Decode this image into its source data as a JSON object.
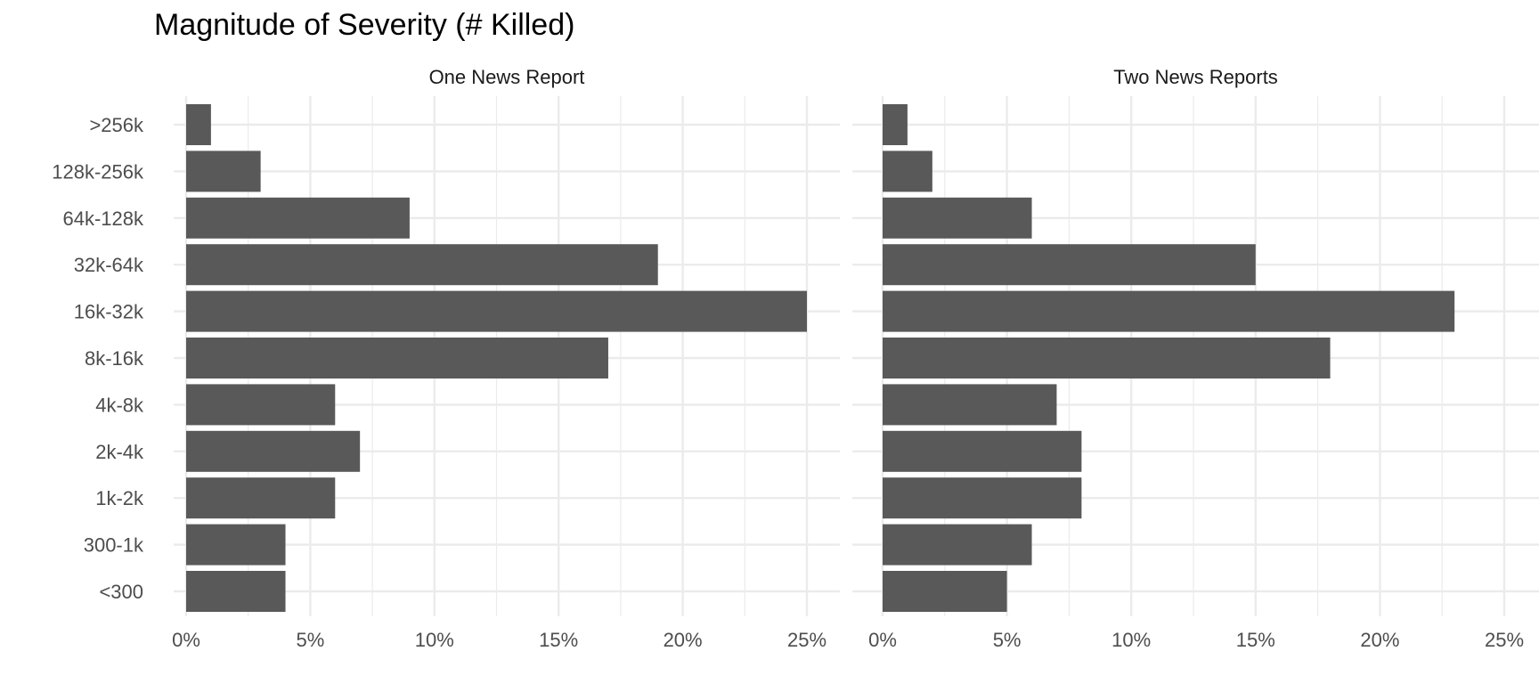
{
  "chart_data": {
    "type": "bar",
    "orientation": "horizontal",
    "title": "Magnitude of Severity (# Killed)",
    "xlabel": "",
    "ylabel": "",
    "categories": [
      ">256k",
      "128k-256k",
      "64k-128k",
      "32k-64k",
      "16k-32k",
      "8k-16k",
      "4k-8k",
      "2k-4k",
      "1k-2k",
      "300-1k",
      "<300"
    ],
    "xlim": [
      0,
      25
    ],
    "x_ticks": [
      0,
      5,
      10,
      15,
      20,
      25
    ],
    "x_tick_labels": [
      "0%",
      "5%",
      "10%",
      "15%",
      "20%",
      "25%"
    ],
    "grid": true,
    "bar_color": "#595959",
    "grid_color": "#ebebeb",
    "panels": [
      {
        "name": "One News Report",
        "values": [
          1,
          3,
          9,
          19,
          25,
          17,
          6,
          7,
          6,
          4,
          4
        ]
      },
      {
        "name": "Two News Reports",
        "values": [
          1,
          2,
          6,
          15,
          23,
          18,
          7,
          8,
          8,
          6,
          5
        ]
      }
    ]
  }
}
